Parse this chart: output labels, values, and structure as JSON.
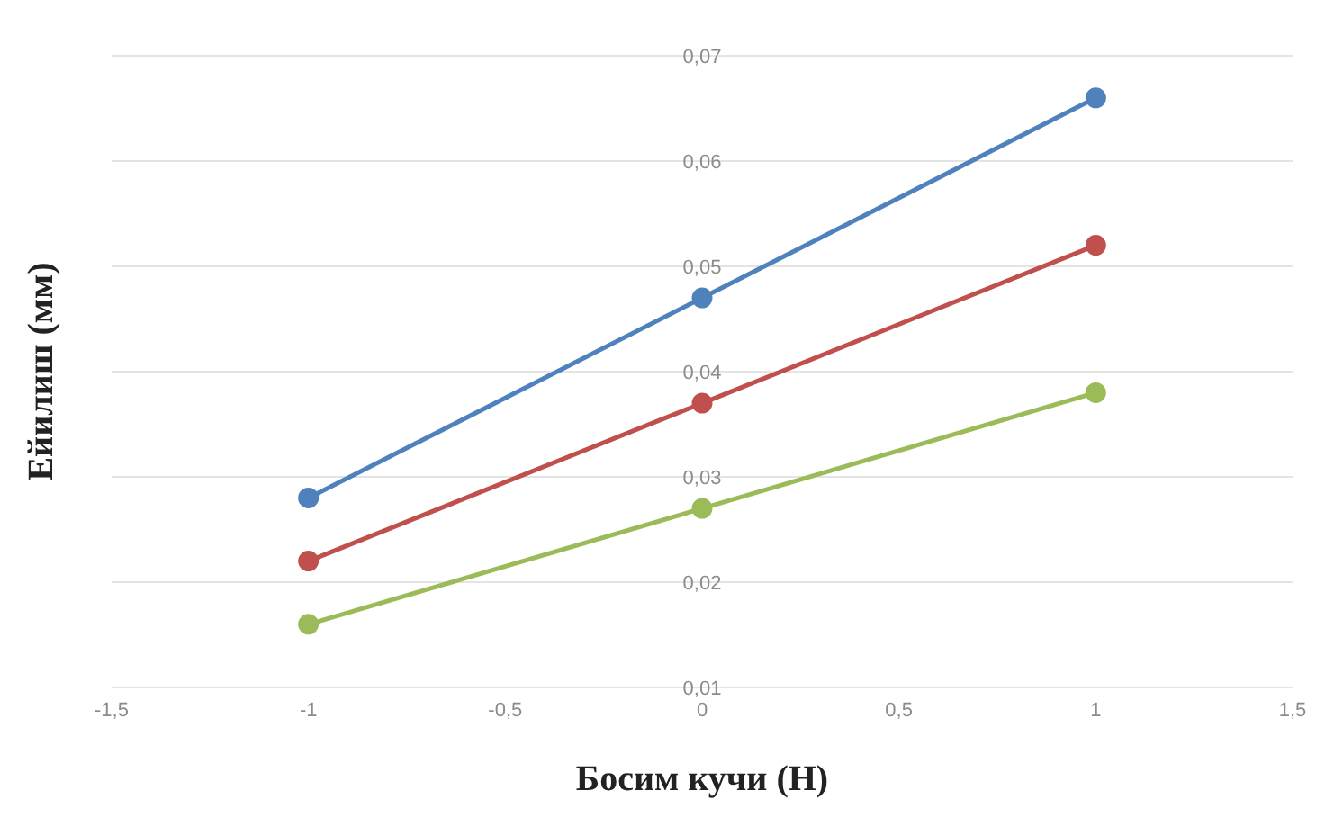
{
  "chart_data": {
    "type": "line",
    "xlabel": "Босим кучи (Н)",
    "ylabel": "Ейилиш (мм)",
    "x": [
      -1,
      0,
      1
    ],
    "series": [
      {
        "color": "#4f81bd",
        "values": [
          0.028,
          0.047,
          0.066
        ]
      },
      {
        "color": "#c0504d",
        "values": [
          0.022,
          0.037,
          0.052
        ]
      },
      {
        "color": "#9bbb59",
        "values": [
          0.016,
          0.027,
          0.038
        ]
      }
    ],
    "xlim": [
      -1.5,
      1.5
    ],
    "xticks": [
      {
        "value": -1.5,
        "label": "-1,5"
      },
      {
        "value": -1,
        "label": "-1"
      },
      {
        "value": -0.5,
        "label": "-0,5"
      },
      {
        "value": 0,
        "label": "0"
      },
      {
        "value": 0.5,
        "label": "0,5"
      },
      {
        "value": 1,
        "label": "1"
      },
      {
        "value": 1.5,
        "label": "1,5"
      }
    ],
    "ylim": [
      0.01,
      0.07
    ],
    "yticks": [
      {
        "value": 0.01,
        "label": "0,01"
      },
      {
        "value": 0.02,
        "label": "0,02"
      },
      {
        "value": 0.03,
        "label": "0,03"
      },
      {
        "value": 0.04,
        "label": "0,04"
      },
      {
        "value": 0.05,
        "label": "0,05"
      },
      {
        "value": 0.06,
        "label": "0,06"
      },
      {
        "value": 0.07,
        "label": "0,07"
      }
    ],
    "grid": "y",
    "marker": "circle",
    "line_style": "solid",
    "legend": false
  }
}
